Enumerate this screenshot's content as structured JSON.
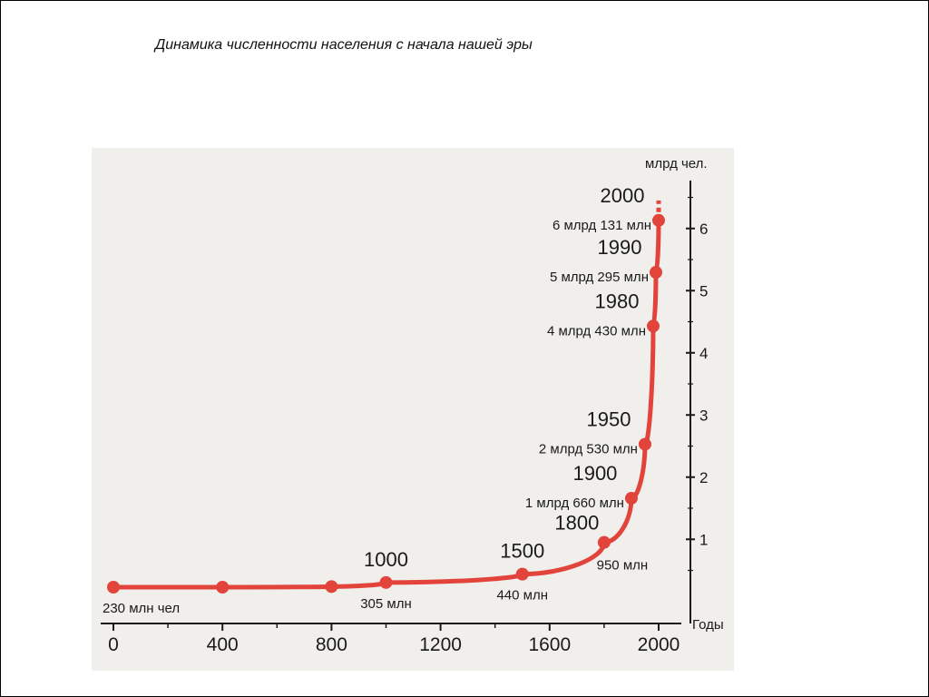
{
  "slide": {
    "title": "Динамика численности населения с начала нашей эры"
  },
  "chart_data": {
    "type": "line",
    "ylabel": "млрд чел.",
    "xlabel": "Годы",
    "xlim": [
      0,
      2000
    ],
    "ylim": [
      0,
      6.5
    ],
    "x_ticks": [
      "0",
      "400",
      "800",
      "1200",
      "1600",
      "2000"
    ],
    "y_ticks": [
      "1",
      "2",
      "3",
      "4",
      "5",
      "6"
    ],
    "color": "#e2433a",
    "points": [
      {
        "x": 0,
        "y": 0.23
      },
      {
        "x": 400,
        "y": 0.23
      },
      {
        "x": 800,
        "y": 0.24
      },
      {
        "x": 1000,
        "y": 0.305
      },
      {
        "x": 1500,
        "y": 0.44
      },
      {
        "x": 1800,
        "y": 0.95
      },
      {
        "x": 1900,
        "y": 1.66
      },
      {
        "x": 1950,
        "y": 2.53
      },
      {
        "x": 1980,
        "y": 4.43
      },
      {
        "x": 1990,
        "y": 5.295
      },
      {
        "x": 2000,
        "y": 6.131
      }
    ],
    "projection_to": 6.45,
    "annotations": [
      {
        "year": "",
        "pop": "230 млн чел",
        "x": 0,
        "y": 0.23,
        "anchor": "below-right"
      },
      {
        "year": "1000",
        "pop": "305 млн",
        "x": 1000,
        "y": 0.305,
        "anchor": "around"
      },
      {
        "year": "1500",
        "pop": "440 млн",
        "x": 1500,
        "y": 0.44,
        "anchor": "around"
      },
      {
        "year": "1800",
        "pop": "950 млн",
        "x": 1800,
        "y": 0.95,
        "anchor": "around-right"
      },
      {
        "year": "1900",
        "pop": "1 млрд 660 млн",
        "x": 1900,
        "y": 1.66,
        "anchor": "left"
      },
      {
        "year": "1950",
        "pop": "2 млрд 530 млн",
        "x": 1950,
        "y": 2.53,
        "anchor": "left"
      },
      {
        "year": "1980",
        "pop": "4 млрд 430 млн",
        "x": 1980,
        "y": 4.43,
        "anchor": "left"
      },
      {
        "year": "1990",
        "pop": "5 млрд 295 млн",
        "x": 1990,
        "y": 5.295,
        "anchor": "left"
      },
      {
        "year": "2000",
        "pop": "6 млрд 131 млн",
        "x": 2000,
        "y": 6.131,
        "anchor": "left"
      }
    ]
  }
}
